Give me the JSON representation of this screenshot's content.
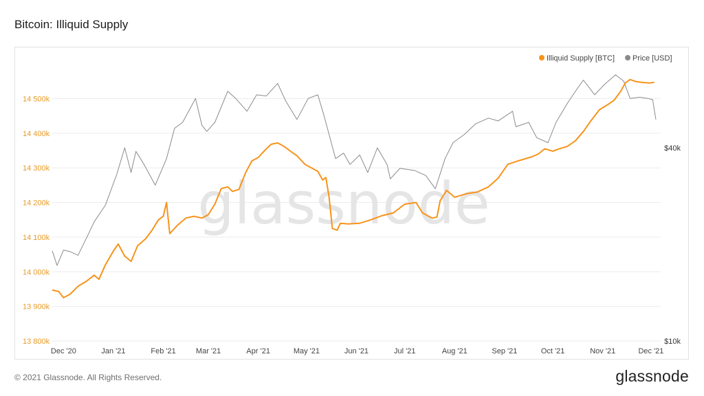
{
  "page": {
    "title": "Bitcoin: Illiquid Supply",
    "copyright": "© 2021 Glassnode. All Rights Reserved.",
    "logo": "glassnode",
    "watermark": "glassnode"
  },
  "chart_data": {
    "type": "line",
    "grid": true,
    "legend_position": "top-right",
    "x_ticks": [
      {
        "label": "Dec '20",
        "date": "2020-12-01"
      },
      {
        "label": "Jan '21",
        "date": "2021-01-01"
      },
      {
        "label": "Feb '21",
        "date": "2021-02-01"
      },
      {
        "label": "Mar '21",
        "date": "2021-03-01"
      },
      {
        "label": "Apr '21",
        "date": "2021-04-01"
      },
      {
        "label": "May '21",
        "date": "2021-05-01"
      },
      {
        "label": "Jun '21",
        "date": "2021-06-01"
      },
      {
        "label": "Jul '21",
        "date": "2021-07-01"
      },
      {
        "label": "Aug '21",
        "date": "2021-08-01"
      },
      {
        "label": "Sep '21",
        "date": "2021-09-01"
      },
      {
        "label": "Oct '21",
        "date": "2021-10-01"
      },
      {
        "label": "Nov '21",
        "date": "2021-11-01"
      },
      {
        "label": "Dec '21",
        "date": "2021-12-01"
      }
    ],
    "x_range": [
      "2020-11-24",
      "2021-12-07"
    ],
    "y_left": {
      "ylim": [
        13800000,
        14600000
      ],
      "ticks": [
        {
          "value": 13800000,
          "label": "13 800k"
        },
        {
          "value": 13900000,
          "label": "13 900k"
        },
        {
          "value": 14000000,
          "label": "14 000k"
        },
        {
          "value": 14100000,
          "label": "14 100k"
        },
        {
          "value": 14200000,
          "label": "14 200k"
        },
        {
          "value": 14300000,
          "label": "14 300k"
        },
        {
          "value": 14400000,
          "label": "14 400k"
        },
        {
          "value": 14500000,
          "label": "14 500k"
        }
      ],
      "color": "#e89a25"
    },
    "y_right": {
      "scale": "log",
      "ylim": [
        10000,
        73000
      ],
      "ticks": [
        {
          "value": 10000,
          "label": "$10k"
        },
        {
          "value": 40000,
          "label": "$40k"
        }
      ],
      "color": "#333333"
    },
    "series": [
      {
        "name": "Illiquid Supply [BTC]",
        "axis": "left",
        "color": "#f7931a",
        "points": [
          [
            "2020-11-24",
            13947000
          ],
          [
            "2020-11-28",
            13943000
          ],
          [
            "2020-12-01",
            13925000
          ],
          [
            "2020-12-05",
            13935000
          ],
          [
            "2020-12-10",
            13958000
          ],
          [
            "2020-12-15",
            13972000
          ],
          [
            "2020-12-20",
            13990000
          ],
          [
            "2020-12-23",
            13978000
          ],
          [
            "2020-12-27",
            14020000
          ],
          [
            "2021-01-01",
            14060000
          ],
          [
            "2021-01-04",
            14080000
          ],
          [
            "2021-01-08",
            14045000
          ],
          [
            "2021-01-12",
            14030000
          ],
          [
            "2021-01-16",
            14075000
          ],
          [
            "2021-01-21",
            14095000
          ],
          [
            "2021-01-25",
            14120000
          ],
          [
            "2021-01-29",
            14150000
          ],
          [
            "2021-02-01",
            14160000
          ],
          [
            "2021-02-03",
            14200000
          ],
          [
            "2021-02-05",
            14110000
          ],
          [
            "2021-02-10",
            14135000
          ],
          [
            "2021-02-15",
            14155000
          ],
          [
            "2021-02-20",
            14160000
          ],
          [
            "2021-02-25",
            14155000
          ],
          [
            "2021-03-01",
            14165000
          ],
          [
            "2021-03-05",
            14195000
          ],
          [
            "2021-03-09",
            14240000
          ],
          [
            "2021-03-13",
            14245000
          ],
          [
            "2021-03-16",
            14232000
          ],
          [
            "2021-03-20",
            14238000
          ],
          [
            "2021-03-24",
            14285000
          ],
          [
            "2021-03-28",
            14320000
          ],
          [
            "2021-04-01",
            14330000
          ],
          [
            "2021-04-05",
            14350000
          ],
          [
            "2021-04-09",
            14368000
          ],
          [
            "2021-04-13",
            14372000
          ],
          [
            "2021-04-17",
            14362000
          ],
          [
            "2021-04-21",
            14348000
          ],
          [
            "2021-04-25",
            14335000
          ],
          [
            "2021-04-30",
            14310000
          ],
          [
            "2021-05-04",
            14300000
          ],
          [
            "2021-05-08",
            14290000
          ],
          [
            "2021-05-11",
            14265000
          ],
          [
            "2021-05-13",
            14272000
          ],
          [
            "2021-05-15",
            14215000
          ],
          [
            "2021-05-17",
            14125000
          ],
          [
            "2021-05-20",
            14120000
          ],
          [
            "2021-05-22",
            14140000
          ],
          [
            "2021-05-27",
            14138000
          ],
          [
            "2021-06-03",
            14140000
          ],
          [
            "2021-06-10",
            14150000
          ],
          [
            "2021-06-17",
            14162000
          ],
          [
            "2021-06-24",
            14170000
          ],
          [
            "2021-07-01",
            14195000
          ],
          [
            "2021-07-08",
            14200000
          ],
          [
            "2021-07-12",
            14170000
          ],
          [
            "2021-07-18",
            14155000
          ],
          [
            "2021-07-21",
            14158000
          ],
          [
            "2021-07-23",
            14205000
          ],
          [
            "2021-07-27",
            14235000
          ],
          [
            "2021-08-01",
            14215000
          ],
          [
            "2021-08-08",
            14225000
          ],
          [
            "2021-08-15",
            14230000
          ],
          [
            "2021-08-22",
            14245000
          ],
          [
            "2021-08-28",
            14270000
          ],
          [
            "2021-09-03",
            14310000
          ],
          [
            "2021-09-08",
            14318000
          ],
          [
            "2021-09-13",
            14325000
          ],
          [
            "2021-09-18",
            14332000
          ],
          [
            "2021-09-22",
            14340000
          ],
          [
            "2021-09-26",
            14355000
          ],
          [
            "2021-10-01",
            14348000
          ],
          [
            "2021-10-05",
            14355000
          ],
          [
            "2021-10-10",
            14362000
          ],
          [
            "2021-10-15",
            14378000
          ],
          [
            "2021-10-20",
            14405000
          ],
          [
            "2021-10-25",
            14438000
          ],
          [
            "2021-10-30",
            14468000
          ],
          [
            "2021-11-04",
            14482000
          ],
          [
            "2021-11-08",
            14495000
          ],
          [
            "2021-11-12",
            14520000
          ],
          [
            "2021-11-15",
            14545000
          ],
          [
            "2021-11-18",
            14555000
          ],
          [
            "2021-11-21",
            14550000
          ],
          [
            "2021-11-25",
            14547000
          ],
          [
            "2021-11-30",
            14545000
          ],
          [
            "2021-12-03",
            14547000
          ]
        ]
      },
      {
        "name": "Price [USD]",
        "axis": "right",
        "color": "#8a8a8a",
        "points": [
          [
            "2020-11-24",
            19100
          ],
          [
            "2020-11-27",
            17200
          ],
          [
            "2020-12-01",
            19200
          ],
          [
            "2020-12-05",
            19000
          ],
          [
            "2020-12-10",
            18500
          ],
          [
            "2020-12-16",
            21300
          ],
          [
            "2020-12-20",
            23500
          ],
          [
            "2020-12-27",
            26500
          ],
          [
            "2021-01-03",
            33000
          ],
          [
            "2021-01-08",
            40000
          ],
          [
            "2021-01-12",
            33500
          ],
          [
            "2021-01-15",
            39000
          ],
          [
            "2021-01-20",
            35500
          ],
          [
            "2021-01-27",
            30600
          ],
          [
            "2021-02-03",
            37000
          ],
          [
            "2021-02-08",
            46000
          ],
          [
            "2021-02-13",
            48000
          ],
          [
            "2021-02-21",
            57000
          ],
          [
            "2021-02-25",
            47000
          ],
          [
            "2021-02-28",
            45000
          ],
          [
            "2021-03-05",
            48000
          ],
          [
            "2021-03-13",
            60000
          ],
          [
            "2021-03-18",
            57000
          ],
          [
            "2021-03-25",
            52000
          ],
          [
            "2021-03-31",
            58500
          ],
          [
            "2021-04-06",
            58000
          ],
          [
            "2021-04-13",
            63500
          ],
          [
            "2021-04-18",
            56000
          ],
          [
            "2021-04-25",
            49000
          ],
          [
            "2021-05-02",
            57000
          ],
          [
            "2021-05-08",
            58500
          ],
          [
            "2021-05-12",
            50000
          ],
          [
            "2021-05-19",
            37000
          ],
          [
            "2021-05-24",
            38500
          ],
          [
            "2021-05-28",
            35500
          ],
          [
            "2021-06-03",
            38000
          ],
          [
            "2021-06-08",
            33500
          ],
          [
            "2021-06-14",
            40000
          ],
          [
            "2021-06-20",
            35500
          ],
          [
            "2021-06-22",
            32000
          ],
          [
            "2021-06-28",
            34500
          ],
          [
            "2021-07-07",
            34000
          ],
          [
            "2021-07-14",
            32800
          ],
          [
            "2021-07-20",
            29800
          ],
          [
            "2021-07-26",
            37000
          ],
          [
            "2021-07-31",
            41500
          ],
          [
            "2021-08-07",
            44000
          ],
          [
            "2021-08-14",
            47500
          ],
          [
            "2021-08-22",
            49500
          ],
          [
            "2021-08-28",
            48500
          ],
          [
            "2021-09-06",
            52000
          ],
          [
            "2021-09-08",
            46500
          ],
          [
            "2021-09-16",
            48000
          ],
          [
            "2021-09-21",
            43000
          ],
          [
            "2021-09-28",
            41500
          ],
          [
            "2021-10-03",
            48000
          ],
          [
            "2021-10-10",
            55000
          ],
          [
            "2021-10-16",
            61000
          ],
          [
            "2021-10-20",
            65000
          ],
          [
            "2021-10-27",
            58500
          ],
          [
            "2021-11-02",
            63000
          ],
          [
            "2021-11-09",
            67500
          ],
          [
            "2021-11-14",
            64500
          ],
          [
            "2021-11-18",
            57000
          ],
          [
            "2021-11-24",
            57500
          ],
          [
            "2021-11-29",
            57000
          ],
          [
            "2021-12-02",
            56500
          ],
          [
            "2021-12-04",
            49000
          ]
        ]
      }
    ]
  }
}
